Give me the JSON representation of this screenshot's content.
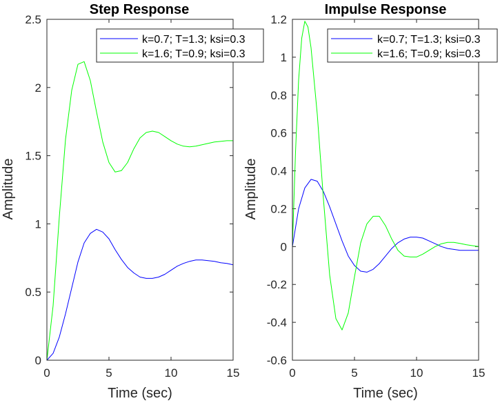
{
  "chart_data": [
    {
      "type": "line",
      "title": "Step Response",
      "xlabel": "Time (sec)",
      "ylabel": "Amplitude",
      "xlim": [
        0,
        15
      ],
      "ylim": [
        0,
        2.5
      ],
      "xticks": [
        0,
        5,
        10,
        15
      ],
      "xtick_labels": [
        "0",
        "5",
        "10",
        "15"
      ],
      "yticks": [
        0,
        0.5,
        1,
        1.5,
        2,
        2.5
      ],
      "ytick_labels": [
        "0",
        "0.5",
        "1",
        "1.5",
        "2",
        "2.5"
      ],
      "grid": false,
      "legend_position": "top-right",
      "series": [
        {
          "name": "k=0.7; T=1.3; ksi=0.3",
          "color": "#0000ff",
          "x": [
            0,
            0.5,
            1,
            1.5,
            2,
            2.5,
            3,
            3.5,
            4,
            4.5,
            5,
            5.5,
            6,
            6.5,
            7,
            7.5,
            8,
            8.5,
            9,
            9.5,
            10,
            10.5,
            11,
            11.5,
            12,
            12.5,
            13,
            13.5,
            14,
            14.5,
            15
          ],
          "y": [
            0,
            0.05,
            0.17,
            0.34,
            0.53,
            0.72,
            0.86,
            0.93,
            0.96,
            0.94,
            0.89,
            0.81,
            0.74,
            0.68,
            0.64,
            0.61,
            0.6,
            0.6,
            0.61,
            0.63,
            0.66,
            0.69,
            0.71,
            0.725,
            0.735,
            0.735,
            0.73,
            0.725,
            0.715,
            0.71,
            0.7
          ]
        },
        {
          "name": "k=1.6; T=0.9; ksi=0.3",
          "color": "#00ff00",
          "x": [
            0,
            0.5,
            1,
            1.5,
            2,
            2.5,
            3,
            3.5,
            4,
            4.5,
            5,
            5.5,
            6,
            6.5,
            7,
            7.5,
            8,
            8.5,
            9,
            9.5,
            10,
            10.5,
            11,
            11.5,
            12,
            12.5,
            13,
            13.5,
            14,
            14.5,
            15
          ],
          "y": [
            0,
            0.4,
            1.05,
            1.62,
            1.98,
            2.17,
            2.19,
            2.05,
            1.82,
            1.6,
            1.45,
            1.38,
            1.39,
            1.45,
            1.55,
            1.63,
            1.67,
            1.68,
            1.67,
            1.64,
            1.61,
            1.585,
            1.57,
            1.565,
            1.57,
            1.58,
            1.59,
            1.6,
            1.605,
            1.61,
            1.61
          ]
        }
      ]
    },
    {
      "type": "line",
      "title": "Impulse Response",
      "xlabel": "Time (sec)",
      "ylabel": "Amplitude",
      "xlim": [
        0,
        15
      ],
      "ylim": [
        -0.6,
        1.2
      ],
      "xticks": [
        0,
        5,
        10,
        15
      ],
      "xtick_labels": [
        "0",
        "5",
        "10",
        "15"
      ],
      "yticks": [
        -0.6,
        -0.4,
        -0.2,
        0,
        0.2,
        0.4,
        0.6,
        0.8,
        1,
        1.2
      ],
      "ytick_labels": [
        "-0.6",
        "-0.4",
        "-0.2",
        "0",
        "0.2",
        "0.4",
        "0.6",
        "0.8",
        "1",
        "1.2"
      ],
      "grid": false,
      "legend_position": "top-right",
      "series": [
        {
          "name": "k=0.7; T=1.3; ksi=0.3",
          "color": "#0000ff",
          "x": [
            0,
            0.5,
            1,
            1.5,
            2,
            2.5,
            3,
            3.5,
            4,
            4.5,
            5,
            5.5,
            6,
            6.5,
            7,
            7.5,
            8,
            8.5,
            9,
            9.5,
            10,
            10.5,
            11,
            11.5,
            12,
            12.5,
            13,
            13.5,
            14,
            14.5,
            15
          ],
          "y": [
            0,
            0.2,
            0.31,
            0.355,
            0.345,
            0.29,
            0.21,
            0.12,
            0.03,
            -0.05,
            -0.1,
            -0.13,
            -0.135,
            -0.12,
            -0.09,
            -0.05,
            -0.01,
            0.02,
            0.04,
            0.05,
            0.05,
            0.045,
            0.03,
            0.015,
            0.0,
            -0.01,
            -0.015,
            -0.02,
            -0.02,
            -0.02,
            -0.02
          ]
        },
        {
          "name": "k=1.6; T=0.9; ksi=0.3",
          "color": "#00ff00",
          "x": [
            0,
            0.25,
            0.5,
            0.75,
            1,
            1.25,
            1.5,
            2,
            2.5,
            3,
            3.5,
            4,
            4.5,
            5,
            5.5,
            6,
            6.5,
            7,
            7.5,
            8,
            8.5,
            9,
            9.5,
            10,
            10.5,
            11,
            11.5,
            12,
            12.5,
            13,
            13.5,
            14,
            14.5,
            15
          ],
          "y": [
            0,
            0.5,
            0.88,
            1.1,
            1.19,
            1.16,
            1.05,
            0.7,
            0.25,
            -0.15,
            -0.38,
            -0.44,
            -0.35,
            -0.16,
            0.02,
            0.12,
            0.16,
            0.16,
            0.11,
            0.04,
            -0.02,
            -0.05,
            -0.055,
            -0.055,
            -0.04,
            -0.02,
            0.0,
            0.015,
            0.022,
            0.022,
            0.017,
            0.01,
            0.005,
            0.0
          ]
        }
      ]
    }
  ]
}
